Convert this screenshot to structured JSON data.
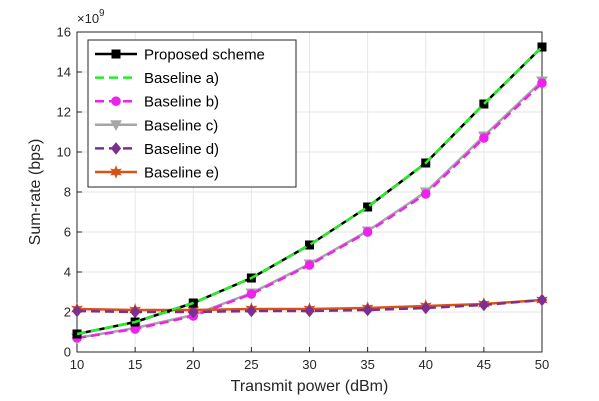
{
  "chart_data": {
    "type": "line",
    "xlabel": "Transmit power (dBm)",
    "ylabel": "Sum-rate (bps)",
    "y_exponent_label": "×10",
    "y_exponent_power": "9",
    "xlim": [
      10,
      50
    ],
    "ylim": [
      0,
      16
    ],
    "x_ticks": [
      "10",
      "15",
      "20",
      "25",
      "30",
      "35",
      "40",
      "45",
      "50"
    ],
    "y_ticks": [
      "0",
      "2",
      "4",
      "6",
      "8",
      "10",
      "12",
      "14",
      "16"
    ],
    "grid": true,
    "legend_position": "top-left",
    "x": [
      10,
      15,
      20,
      25,
      30,
      35,
      40,
      45,
      50
    ],
    "series": [
      {
        "name": "Proposed scheme",
        "color": "#000000",
        "dash": "solid",
        "marker": "square",
        "values": [
          0.9,
          1.5,
          2.45,
          3.7,
          5.35,
          7.25,
          9.45,
          12.4,
          15.25
        ]
      },
      {
        "name": "Baseline a)",
        "color": "#22ee22",
        "dash": "dashed",
        "marker": "none",
        "values": [
          0.9,
          1.5,
          2.45,
          3.7,
          5.35,
          7.25,
          9.45,
          12.4,
          15.25
        ]
      },
      {
        "name": "Baseline b)",
        "color": "#ee22ee",
        "dash": "dashed",
        "marker": "circle",
        "values": [
          0.7,
          1.15,
          1.8,
          2.9,
          4.35,
          6.0,
          7.9,
          10.7,
          13.45
        ]
      },
      {
        "name": "Baseline c)",
        "color": "#a6a6a6",
        "dash": "solid",
        "marker": "triangle-down",
        "values": [
          0.7,
          1.2,
          1.85,
          2.95,
          4.4,
          6.05,
          8.0,
          10.8,
          13.55
        ]
      },
      {
        "name": "Baseline d)",
        "color": "#7e2f8e",
        "dash": "dashed",
        "marker": "diamond",
        "values": [
          2.05,
          2.0,
          2.0,
          2.05,
          2.05,
          2.1,
          2.2,
          2.35,
          2.6
        ]
      },
      {
        "name": "Baseline e)",
        "color": "#d95319",
        "dash": "solid",
        "marker": "hexagram",
        "values": [
          2.15,
          2.1,
          2.1,
          2.15,
          2.15,
          2.2,
          2.3,
          2.4,
          2.6
        ]
      }
    ]
  }
}
